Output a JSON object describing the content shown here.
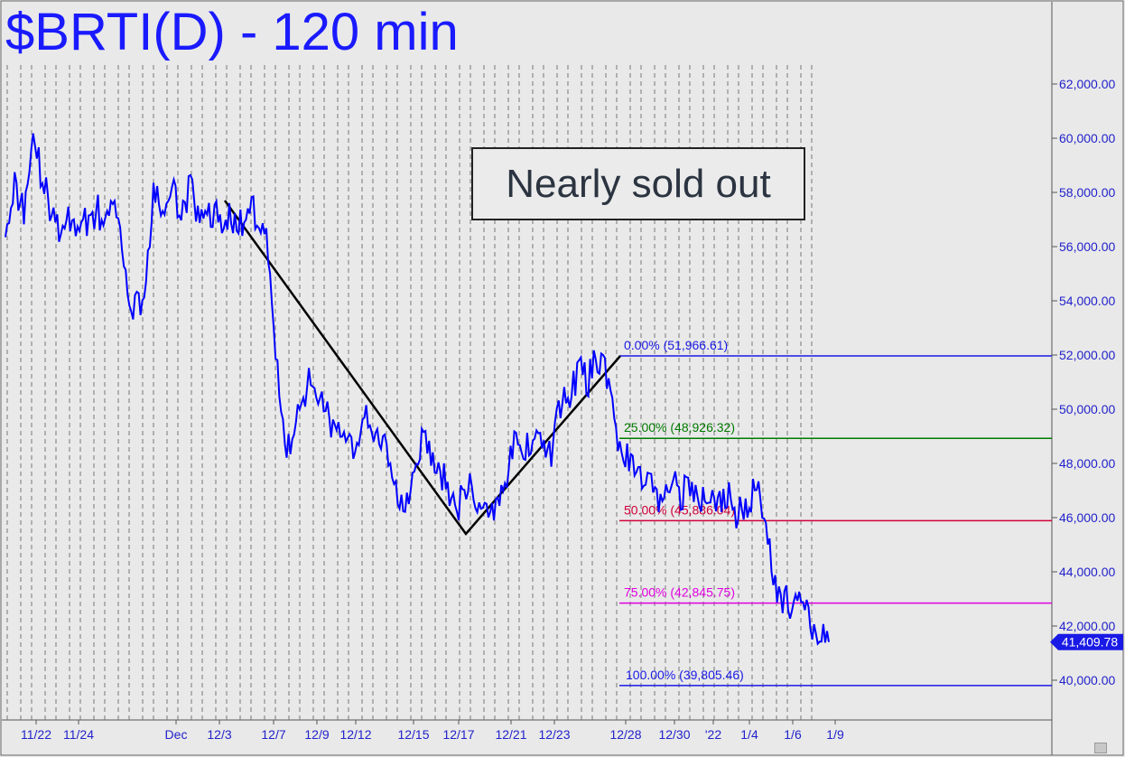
{
  "title": "$BRTI(D) - 120 min",
  "annotation": "Nearly sold out",
  "chart_data": {
    "type": "line",
    "title": "$BRTI(D) - 120 min",
    "y_ticks": [
      "62,000.00",
      "60,000.00",
      "58,000.00",
      "56,000.00",
      "54,000.00",
      "52,000.00",
      "50,000.00",
      "48,000.00",
      "46,000.00",
      "44,000.00",
      "42,000.00",
      "40,000.00"
    ],
    "y_tick_values": [
      62000,
      60000,
      58000,
      56000,
      54000,
      52000,
      50000,
      48000,
      46000,
      44000,
      42000,
      40000
    ],
    "ylim": [
      38300,
      64000
    ],
    "x_labels": [
      "11/22",
      "11/24",
      "Dec",
      "12/3",
      "12/7",
      "12/9",
      "12/12",
      "12/15",
      "12/17",
      "12/21",
      "12/23",
      "12/28",
      "12/30",
      "'22",
      "1/4",
      "1/6",
      "1/9"
    ],
    "last_price": 41409.78,
    "last_price_label": "41,409.78",
    "series": [
      {
        "values": [
          57000,
          58200,
          57400,
          60100,
          58500,
          57200,
          56300,
          57000,
          56800,
          57100,
          57300,
          56900,
          57500,
          54500,
          53800,
          54200,
          57800,
          57400,
          58000,
          57200,
          58300,
          56800,
          57400,
          57000,
          57100,
          56800,
          57000,
          57300,
          56900,
          53100,
          49000,
          48600,
          50500,
          51000,
          50800,
          49600,
          48900,
          48400,
          48800,
          49800,
          49000,
          48500,
          47300,
          46600,
          47400,
          48900,
          48200,
          47700,
          46900,
          46400,
          47200,
          46700,
          46100,
          46600,
          47400,
          48700,
          48200,
          49200,
          48800,
          48300,
          50100,
          50600,
          51400,
          51100,
          51900,
          51300,
          49200,
          48200,
          47700,
          47400,
          47100,
          46600,
          47600,
          46900,
          47200,
          46300,
          47000,
          46500,
          46800,
          46200,
          46400,
          47100,
          46500,
          43800,
          43000,
          42700,
          42900,
          42100,
          41500,
          41409.78
        ],
        "color": "#0000ff"
      }
    ],
    "pattern_points": [
      57700,
      45400,
      51966.61
    ],
    "fib_levels": [
      {
        "label": "0.00% (51,966.61)",
        "value": 51966.61,
        "color": "#1a1ae6"
      },
      {
        "label": "25.00% (48,926.32)",
        "value": 48926.32,
        "color": "#007a00"
      },
      {
        "label": "50.00% (45,886.04)",
        "value": 45886.04,
        "color": "#d0003a"
      },
      {
        "label": "75.00% (42,845.75)",
        "value": 42845.75,
        "color": "#e000e0"
      },
      {
        "label": "100.00% (39,805.46)",
        "value": 39805.46,
        "color": "#1a1ae6"
      }
    ],
    "grid": "vertical dashed",
    "legend": "none"
  }
}
